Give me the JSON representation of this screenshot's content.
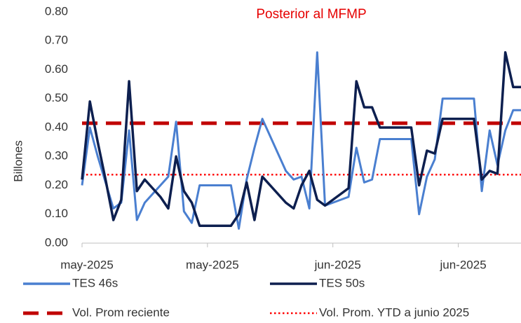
{
  "chart_data": {
    "type": "line",
    "title": "Posterior al MFMP",
    "y_label": "Billones",
    "categories": [
      "may-2025",
      null,
      null,
      null,
      null,
      null,
      null,
      null,
      null,
      null,
      null,
      null,
      null,
      null,
      null,
      null,
      "may-2025",
      null,
      null,
      null,
      null,
      null,
      null,
      null,
      null,
      null,
      null,
      null,
      null,
      null,
      null,
      null,
      "jun-2025",
      null,
      null,
      null,
      null,
      null,
      null,
      null,
      null,
      null,
      null,
      null,
      null,
      null,
      null,
      null,
      "jun-2025",
      null,
      null,
      null,
      null,
      null,
      null,
      null,
      null
    ],
    "series": [
      {
        "name": "TES 46s",
        "color": "#4a7fd0",
        "values": [
          0.2,
          0.4,
          0.3,
          0.21,
          0.12,
          0.14,
          0.39,
          0.08,
          0.14,
          0.17,
          0.2,
          0.23,
          0.42,
          0.11,
          0.07,
          0.2,
          0.2,
          0.2,
          0.2,
          0.2,
          0.05,
          0.22,
          0.33,
          0.43,
          0.37,
          0.31,
          0.25,
          0.22,
          0.23,
          0.12,
          0.66,
          0.13,
          0.14,
          0.15,
          0.16,
          0.33,
          0.21,
          0.22,
          0.36,
          0.36,
          0.36,
          0.36,
          0.36,
          0.1,
          0.23,
          0.29,
          0.5,
          0.5,
          0.5,
          0.5,
          0.5,
          0.18,
          0.39,
          0.27,
          0.39,
          0.46,
          0.46
        ]
      },
      {
        "name": "TES 50s",
        "color": "#0d1f4f",
        "values": [
          0.22,
          0.49,
          0.35,
          0.22,
          0.08,
          0.15,
          0.56,
          0.18,
          0.22,
          0.19,
          0.16,
          0.12,
          0.3,
          0.18,
          0.14,
          0.06,
          0.06,
          0.06,
          0.06,
          0.06,
          0.1,
          0.21,
          0.08,
          0.23,
          0.2,
          0.17,
          0.14,
          0.12,
          0.2,
          0.25,
          0.15,
          0.13,
          0.15,
          0.17,
          0.19,
          0.56,
          0.47,
          0.47,
          0.4,
          0.4,
          0.4,
          0.4,
          0.4,
          0.2,
          0.32,
          0.31,
          0.43,
          0.43,
          0.43,
          0.43,
          0.43,
          0.22,
          0.25,
          0.24,
          0.66,
          0.54,
          0.54
        ]
      }
    ],
    "reference_lines": [
      {
        "name": "Vol. Prom reciente",
        "value": 0.415,
        "color": "#c00000",
        "style": "dashed"
      },
      {
        "name": "Vol. Prom. YTD a junio 2025",
        "value": 0.237,
        "color": "#ff0000",
        "style": "dotted"
      }
    ],
    "ylim": [
      0,
      0.8
    ],
    "yticks": [
      {
        "value": 0,
        "label": "0.00"
      },
      {
        "value": 0.1,
        "label": "0.10"
      },
      {
        "value": 0.2,
        "label": "0.20"
      },
      {
        "value": 0.3,
        "label": "0.30"
      },
      {
        "value": 0.4,
        "label": "0.40"
      },
      {
        "value": 0.5,
        "label": "0.50"
      },
      {
        "value": 0.6,
        "label": "0.60"
      },
      {
        "value": 0.7,
        "label": "0.70"
      },
      {
        "value": 0.8,
        "label": "0.80"
      }
    ]
  }
}
